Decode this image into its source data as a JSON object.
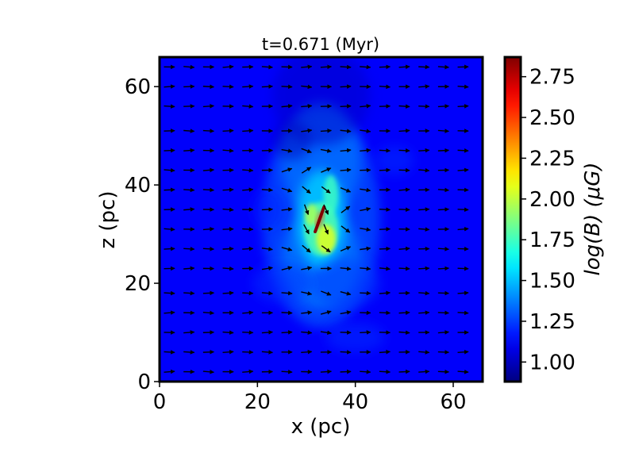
{
  "chart_data": {
    "type": "heatmap",
    "title": "t=0.671 (Myr)",
    "xlabel": "x (pc)",
    "ylabel": "z (pc)",
    "xlim": [
      0,
      66
    ],
    "ylim": [
      0,
      66
    ],
    "xticks": [
      0,
      20,
      40,
      60
    ],
    "yticks": [
      0,
      20,
      40,
      60
    ],
    "x_tick_labels": [
      "0",
      "20",
      "40",
      "60"
    ],
    "y_tick_labels": [
      "0",
      "20",
      "40",
      "60"
    ],
    "colormap": "jet",
    "colorbar": {
      "label": "log(B) (μG)",
      "range": [
        0.88,
        2.87
      ],
      "ticks": [
        1.0,
        1.25,
        1.5,
        1.75,
        2.0,
        2.25,
        2.5,
        2.75
      ],
      "tick_labels": [
        "1.00",
        "1.25",
        "1.50",
        "1.75",
        "2.00",
        "2.25",
        "2.50",
        "2.75"
      ]
    },
    "field_summary": {
      "background": 1.12,
      "peak": 2.87,
      "peak_location": [
        33,
        33
      ],
      "structure": "vertical filament along x≈33 pc, brightest between z≈25 and z≈40 pc"
    },
    "vector_field": {
      "name": "magnetic field direction",
      "x_positions": [
        2,
        6,
        10,
        14,
        18,
        22,
        26,
        30,
        34,
        38,
        42,
        46,
        50,
        54,
        58,
        62
      ],
      "z_positions": [
        2,
        6,
        10,
        14,
        18,
        23,
        27,
        31,
        35,
        39,
        43,
        47,
        51,
        56,
        60,
        64
      ],
      "general_direction": "+x",
      "distortion": "strong near x≈33 pc, z≈25–40 pc"
    }
  },
  "colors": {
    "frame": "#000000",
    "arrow": "#000000"
  }
}
